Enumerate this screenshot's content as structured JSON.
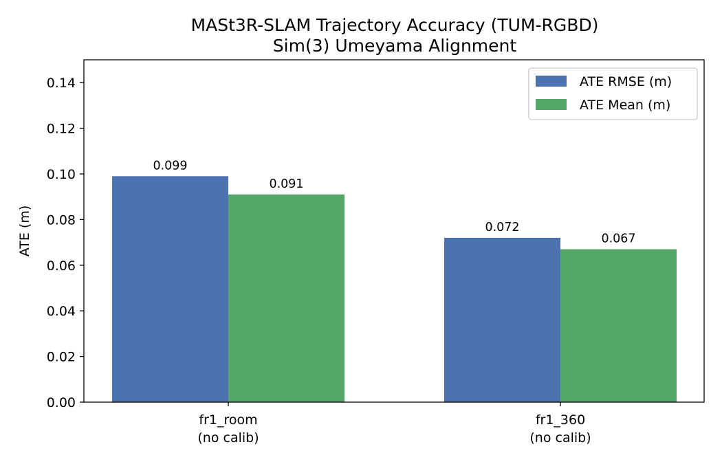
{
  "chart_data": {
    "type": "bar",
    "title": "MASt3R-SLAM Trajectory Accuracy (TUM-RGBD)",
    "subtitle": "Sim(3) Umeyama Alignment",
    "xlabel": "",
    "ylabel": "ATE (m)",
    "ylim": [
      0,
      0.15
    ],
    "yticks": [
      "0.00",
      "0.02",
      "0.04",
      "0.06",
      "0.08",
      "0.10",
      "0.12",
      "0.14"
    ],
    "categories": [
      {
        "line1": "fr1_room",
        "line2": "(no calib)"
      },
      {
        "line1": "fr1_360",
        "line2": "(no calib)"
      }
    ],
    "series": [
      {
        "name": "ATE RMSE (m)",
        "color": "#4c72b0",
        "values": [
          0.099,
          0.072
        ],
        "labels": [
          "0.099",
          "0.072"
        ]
      },
      {
        "name": "ATE Mean (m)",
        "color": "#55a868",
        "values": [
          0.091,
          0.067
        ],
        "labels": [
          "0.091",
          "0.067"
        ]
      }
    ],
    "legend_position": "top-right",
    "grid": false
  }
}
